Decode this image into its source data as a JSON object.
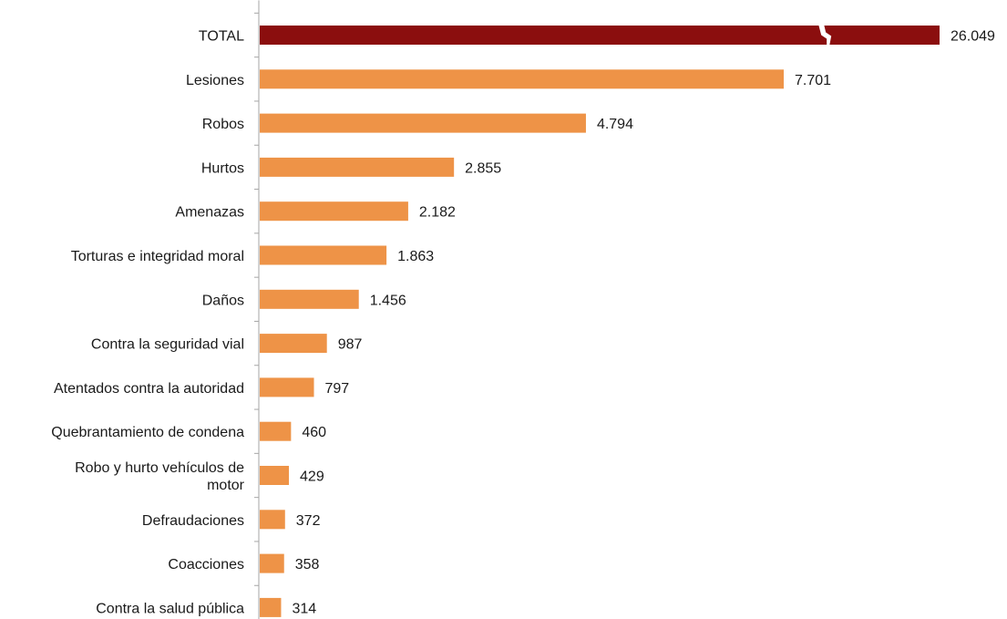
{
  "chart_data": {
    "type": "bar",
    "orientation": "horizontal",
    "title": "",
    "xlabel": "",
    "ylabel": "",
    "axis_break_on_total": true,
    "grid": false,
    "colors": {
      "total": "#8b0e0e",
      "default": "#ee9347",
      "axis": "#a6a6a6"
    },
    "data": [
      {
        "category_lines": [
          "TOTAL"
        ],
        "value": 26049,
        "label": "26.049",
        "is_total": true
      },
      {
        "category_lines": [
          "Lesiones"
        ],
        "value": 7701,
        "label": "7.701"
      },
      {
        "category_lines": [
          "Robos"
        ],
        "value": 4794,
        "label": "4.794"
      },
      {
        "category_lines": [
          "Hurtos"
        ],
        "value": 2855,
        "label": "2.855"
      },
      {
        "category_lines": [
          "Amenazas"
        ],
        "value": 2182,
        "label": "2.182"
      },
      {
        "category_lines": [
          "Torturas e integridad moral"
        ],
        "value": 1863,
        "label": "1.863"
      },
      {
        "category_lines": [
          "Daños"
        ],
        "value": 1456,
        "label": "1.456"
      },
      {
        "category_lines": [
          "Contra la seguridad vial"
        ],
        "value": 987,
        "label": "987"
      },
      {
        "category_lines": [
          "Atentados contra la autoridad"
        ],
        "value": 797,
        "label": "797"
      },
      {
        "category_lines": [
          "Quebrantamiento de condena"
        ],
        "value": 460,
        "label": "460"
      },
      {
        "category_lines": [
          "Robo y hurto vehículos de",
          "motor"
        ],
        "value": 429,
        "label": "429"
      },
      {
        "category_lines": [
          "Defraudaciones"
        ],
        "value": 372,
        "label": "372"
      },
      {
        "category_lines": [
          "Coacciones"
        ],
        "value": 358,
        "label": "358"
      },
      {
        "category_lines": [
          "Contra la salud pública"
        ],
        "value": 314,
        "label": "314"
      }
    ]
  }
}
